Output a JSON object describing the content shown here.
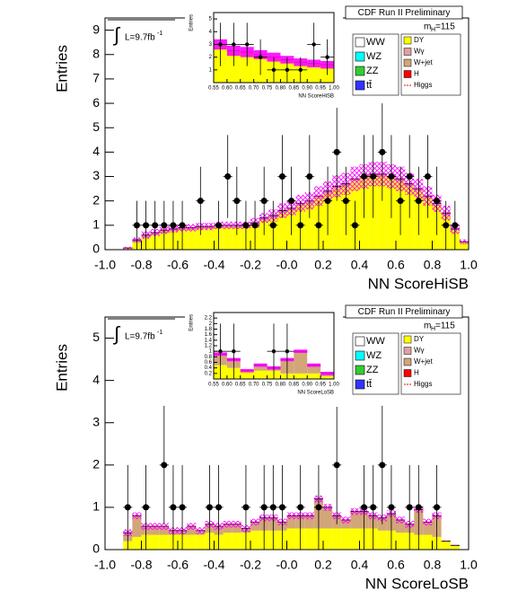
{
  "chart_data": [
    {
      "type": "histogram",
      "title": "CDF Run II Preliminary",
      "mass_label": [
        "m",
        "H",
        "=115"
      ],
      "lumi": [
        "∫",
        "L=9.7fb",
        "-1"
      ],
      "xlabel": "NN ScoreHiSB",
      "ylabel": "Entries",
      "xlim": [
        -1,
        1
      ],
      "ylim": [
        0,
        9.5
      ],
      "xticks": [
        {
          "value": -1,
          "label": "-1.0"
        },
        -0.8,
        -0.6,
        -0.4,
        -0.2,
        {
          "value": 0,
          "label": "-0.0"
        },
        0.2,
        0.4,
        0.6,
        0.8,
        {
          "value": 1,
          "label": "1.0"
        }
      ],
      "yticks": [
        0,
        1,
        2,
        3,
        4,
        5,
        6,
        7,
        8,
        9
      ],
      "bins": [
        -1,
        -0.95,
        -0.9,
        -0.85,
        -0.8,
        -0.75,
        -0.7,
        -0.65,
        -0.6,
        -0.55,
        -0.5,
        -0.45,
        -0.4,
        -0.35,
        -0.3,
        -0.25,
        -0.2,
        -0.15,
        -0.1,
        -0.05,
        0,
        0.05,
        0.1,
        0.15,
        0.2,
        0.25,
        0.3,
        0.35,
        0.4,
        0.45,
        0.5,
        0.55,
        0.6,
        0.65,
        0.7,
        0.75,
        0.8,
        0.85,
        0.9,
        0.95,
        1
      ],
      "series": [
        {
          "name": "DY",
          "color": "#ffff00",
          "values": [
            0,
            0,
            0.05,
            0.3,
            0.5,
            0.6,
            0.7,
            0.75,
            0.8,
            0.8,
            0.85,
            0.85,
            0.9,
            0.9,
            0.9,
            0.9,
            1.0,
            1.2,
            1.3,
            1.5,
            1.6,
            1.8,
            1.9,
            2.1,
            2.3,
            2.5,
            2.6,
            2.8,
            2.9,
            3.0,
            3.0,
            2.9,
            2.8,
            2.6,
            2.4,
            2.1,
            1.8,
            1.4,
            0.8,
            0.3
          ]
        },
        {
          "name": "W+jet",
          "color": "#d2a679",
          "values": [
            0,
            0,
            0.02,
            0.1,
            0.1,
            0.1,
            0.1,
            0.1,
            0.1,
            0.1,
            0.1,
            0.1,
            0.1,
            0.1,
            0.1,
            0.1,
            0.1,
            0.1,
            0.1,
            0.1,
            0.1,
            0.1,
            0.1,
            0.1,
            0.1,
            0.1,
            0.1,
            0.1,
            0.1,
            0.1,
            0.1,
            0.1,
            0.1,
            0.1,
            0.1,
            0.1,
            0.1,
            0.1,
            0.05,
            0.02
          ]
        }
      ],
      "uncertainty": {
        "color": "#ff00ff",
        "values": [
          0,
          0,
          0.05,
          0.1,
          0.15,
          0.15,
          0.15,
          0.15,
          0.15,
          0.15,
          0.15,
          0.15,
          0.15,
          0.15,
          0.15,
          0.15,
          0.2,
          0.2,
          0.25,
          0.3,
          0.3,
          0.35,
          0.35,
          0.4,
          0.4,
          0.45,
          0.45,
          0.5,
          0.5,
          0.5,
          0.5,
          0.5,
          0.5,
          0.45,
          0.4,
          0.4,
          0.35,
          0.3,
          0.2,
          0.1
        ]
      },
      "data_points": {
        "values": [
          null,
          null,
          null,
          1,
          1,
          1,
          1,
          1,
          1,
          null,
          2,
          null,
          1,
          3,
          2,
          1,
          1,
          2,
          1,
          3,
          2,
          1,
          3,
          1,
          2,
          4,
          2,
          1,
          3,
          3,
          4,
          3,
          2,
          3,
          2,
          3,
          2,
          1,
          1,
          null
        ],
        "errors": [
          null,
          null,
          null,
          1,
          1,
          1,
          1,
          1,
          1,
          null,
          1.4,
          null,
          1,
          1.7,
          1.4,
          1,
          1,
          1.4,
          1,
          1.7,
          1.4,
          1,
          1.7,
          1,
          1.4,
          2,
          1.4,
          1,
          1.7,
          1.7,
          2,
          1.7,
          1.4,
          1.7,
          1.4,
          1.7,
          1.4,
          1,
          1,
          null
        ]
      },
      "other_legend": [
        {
          "name": "WW",
          "color": "#ffffff"
        },
        {
          "name": "WZ",
          "color": "#00ffff"
        },
        {
          "name": "ZZ",
          "color": "#33cc33"
        },
        {
          "name": "tt̄",
          "color": "#3333ff"
        },
        {
          "name": "Wγ",
          "color": "#e0a0a0"
        },
        {
          "name": "H",
          "color": "#ff0000"
        },
        {
          "name": "Higgs",
          "color": "#ff0000",
          "style": "dashed-line"
        }
      ],
      "inset": {
        "xlabel": "NN ScoreHiSB",
        "ylabel": "Entries",
        "xlim": [
          0.55,
          1
        ],
        "ylim": [
          0,
          5.5
        ],
        "xticks": [
          0.55,
          {
            "value": 0.6,
            "label": "0.60"
          },
          0.65,
          {
            "value": 0.7,
            "label": "0.70"
          },
          0.75,
          {
            "value": 0.8,
            "label": "0.80"
          },
          0.85,
          {
            "value": 0.9,
            "label": "0.90"
          },
          0.95,
          {
            "value": 1,
            "label": "1.00"
          }
        ],
        "yticks": [
          1,
          2,
          3,
          4,
          5
        ],
        "bins": [
          0.55,
          0.6,
          0.65,
          0.7,
          0.75,
          0.8,
          0.85,
          0.9,
          0.95,
          1
        ],
        "series": [
          {
            "color": "#ffff00",
            "values": [
              3.0,
              2.5,
              2.4,
              2.2,
              2.0,
              1.8,
              1.6,
              1.5,
              1.4
            ]
          }
        ],
        "uncertainty": {
          "color": "#ff00ff",
          "values": [
            0.4,
            0.4,
            0.4,
            0.35,
            0.35,
            0.3,
            0.3,
            0.3,
            0.3
          ]
        },
        "data_points": {
          "values": [
            3,
            3,
            3,
            2,
            1,
            1,
            1,
            3,
            2
          ],
          "errors": [
            1.7,
            1.7,
            1.7,
            1.4,
            1,
            1,
            1,
            1.7,
            1.4
          ]
        }
      }
    },
    {
      "type": "histogram",
      "title": "CDF Run II Preliminary",
      "mass_label": [
        "m",
        "H",
        "=115"
      ],
      "lumi": [
        "∫",
        "L=9.7fb",
        "-1"
      ],
      "xlabel": "NN ScoreLoSB",
      "ylabel": "Entries",
      "xlim": [
        -1,
        1
      ],
      "ylim": [
        0,
        5.5
      ],
      "xticks": [
        {
          "value": -1,
          "label": "-1.0"
        },
        -0.8,
        -0.6,
        -0.4,
        -0.2,
        {
          "value": 0,
          "label": "-0.0"
        },
        0.2,
        0.4,
        0.6,
        0.8,
        {
          "value": 1,
          "label": "1.0"
        }
      ],
      "yticks": [
        0,
        1,
        2,
        3,
        4,
        5
      ],
      "bins": [
        -1,
        -0.95,
        -0.9,
        -0.85,
        -0.8,
        -0.75,
        -0.7,
        -0.65,
        -0.6,
        -0.55,
        -0.5,
        -0.45,
        -0.4,
        -0.35,
        -0.3,
        -0.25,
        -0.2,
        -0.15,
        -0.1,
        -0.05,
        0,
        0.05,
        0.1,
        0.15,
        0.2,
        0.25,
        0.3,
        0.35,
        0.4,
        0.45,
        0.5,
        0.55,
        0.6,
        0.65,
        0.7,
        0.75,
        0.8,
        0.85,
        0.9,
        0.95,
        1
      ],
      "series": [
        {
          "name": "DY",
          "color": "#ffff00",
          "values": [
            0,
            0,
            0.2,
            0.3,
            0.35,
            0.35,
            0.35,
            0.35,
            0.35,
            0.35,
            0.35,
            0.4,
            0.35,
            0.4,
            0.4,
            0.4,
            0.45,
            0.45,
            0.45,
            0.45,
            0.5,
            0.5,
            0.5,
            0.5,
            0.5,
            0.5,
            0.5,
            0.5,
            0.5,
            0.5,
            0.45,
            0.45,
            0.4,
            0.4,
            0.35,
            0.35,
            0.3,
            0.2,
            0.1,
            0
          ]
        },
        {
          "name": "W+jet",
          "color": "#d2a679",
          "values": [
            0,
            0,
            0.2,
            0.5,
            0.2,
            0.2,
            0.2,
            0.1,
            0.1,
            0.2,
            0.1,
            0.2,
            0.2,
            0.2,
            0.2,
            0.1,
            0.2,
            0.3,
            0.3,
            0.2,
            0.3,
            0.3,
            0.3,
            0.7,
            0.5,
            0.3,
            0.2,
            0.4,
            0.4,
            0.3,
            0.3,
            0.4,
            0.3,
            0.2,
            0.6,
            0.3,
            0.5,
            0,
            0,
            0
          ]
        }
      ],
      "uncertainty": {
        "color": "#ff00ff",
        "values": [
          0,
          0,
          0.08,
          0.08,
          0.08,
          0.08,
          0.08,
          0.08,
          0.08,
          0.08,
          0.08,
          0.08,
          0.08,
          0.08,
          0.08,
          0.08,
          0.08,
          0.08,
          0.08,
          0.08,
          0.08,
          0.08,
          0.08,
          0.08,
          0.08,
          0.08,
          0.08,
          0.08,
          0.08,
          0.08,
          0.08,
          0.08,
          0.08,
          0.08,
          0.08,
          0.08,
          0.08,
          0,
          0,
          0
        ]
      },
      "data_points": {
        "values": [
          null,
          null,
          1,
          null,
          1,
          null,
          2,
          1,
          1,
          null,
          null,
          1,
          1,
          null,
          null,
          1,
          null,
          1,
          1,
          1,
          null,
          1,
          null,
          1,
          null,
          2,
          null,
          null,
          1,
          1,
          2,
          1,
          null,
          1,
          1,
          null,
          1,
          null,
          null,
          null
        ],
        "errors": [
          null,
          null,
          1,
          null,
          1,
          null,
          1.4,
          1,
          1,
          null,
          null,
          1,
          1,
          null,
          null,
          1,
          null,
          1,
          1,
          1,
          null,
          1,
          null,
          1,
          null,
          1.4,
          null,
          null,
          1,
          1,
          1.4,
          1,
          null,
          1,
          1,
          null,
          1,
          null,
          null,
          null
        ]
      },
      "other_legend": [
        {
          "name": "WW",
          "color": "#ffffff"
        },
        {
          "name": "WZ",
          "color": "#00ffff"
        },
        {
          "name": "ZZ",
          "color": "#33cc33"
        },
        {
          "name": "tt̄",
          "color": "#3333ff"
        },
        {
          "name": "Wγ",
          "color": "#e0a0a0"
        },
        {
          "name": "H",
          "color": "#ff0000"
        },
        {
          "name": "Higgs",
          "color": "#ff0000",
          "style": "dashed-line"
        }
      ],
      "inset": {
        "xlabel": "NN ScoreLoSB",
        "ylabel": "Entries",
        "xlim": [
          0.55,
          1
        ],
        "ylim": [
          0,
          2.4
        ],
        "xticks": [
          0.55,
          {
            "value": 0.6,
            "label": "0.60"
          },
          0.65,
          {
            "value": 0.7,
            "label": "0.70"
          },
          0.75,
          {
            "value": 0.8,
            "label": "0.80"
          },
          0.85,
          {
            "value": 0.9,
            "label": "0.90"
          },
          0.95,
          {
            "value": 1,
            "label": "1.00"
          }
        ],
        "yticks": [
          0.2,
          0.4,
          0.6,
          0.8,
          1,
          1.2,
          1.4,
          1.6,
          1.8,
          2,
          2.2
        ],
        "bins": [
          0.55,
          0.6,
          0.65,
          0.7,
          0.75,
          0.8,
          0.85,
          0.9,
          0.95,
          1
        ],
        "series": [
          {
            "color": "#ffff00",
            "values": [
              0.5,
              0.4,
              0.3,
              0.3,
              0.3,
              0.2,
              0.2,
              0.2,
              0.1
            ]
          },
          {
            "color": "#d2a679",
            "values": [
              0.4,
              0.3,
              0.0,
              0.2,
              0.1,
              0.5,
              0.8,
              0.3,
              0.1
            ]
          }
        ],
        "uncertainty": {
          "color": "#ff00ff",
          "values": [
            0.06,
            0.06,
            0.06,
            0.06,
            0.06,
            0.06,
            0.06,
            0.06,
            0.06
          ]
        },
        "data_points": {
          "values": [
            1,
            1,
            null,
            null,
            1,
            1,
            null,
            null,
            null
          ],
          "errors": [
            1,
            1,
            null,
            null,
            1,
            1,
            null,
            null,
            null
          ]
        }
      }
    }
  ]
}
